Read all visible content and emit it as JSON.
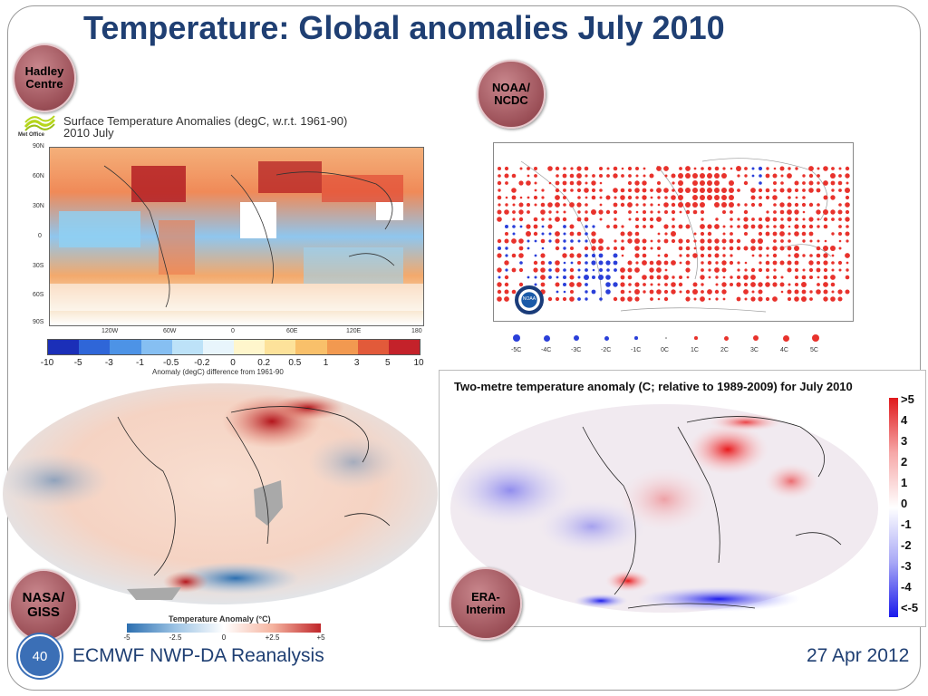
{
  "slide": {
    "title": "Temperature: Global anomalies July 2010",
    "footer_left": "ECMWF NWP-DA Reanalysis",
    "footer_right": "27 Apr 2012",
    "page_number": "40"
  },
  "badges": {
    "hadley": [
      "Hadley",
      "Centre"
    ],
    "noaa": [
      "NOAA/",
      "NCDC"
    ],
    "nasa": [
      "NASA/",
      "GISS"
    ],
    "era": [
      "ERA-",
      "Interim"
    ]
  },
  "hadley_map": {
    "logo_text": "Met Office",
    "title_line1": "Surface Temperature Anomalies (degC, w.r.t. 1961-90)",
    "title_line2": "2010 July",
    "lat_ticks": [
      "90N",
      "60N",
      "30N",
      "0",
      "30S",
      "60S",
      "90S"
    ],
    "lon_ticks": [
      "120W",
      "60W",
      "0",
      "60E",
      "120E",
      "180"
    ],
    "colorbar_ticks": [
      "-10",
      "-5",
      "-3",
      "-1",
      "-0.5",
      "-0.2",
      "0",
      "0.2",
      "0.5",
      "1",
      "3",
      "5",
      "10"
    ],
    "colorbar_colors": [
      "#1b2fb8",
      "#2f66d8",
      "#4d93e6",
      "#86bff2",
      "#bde2f8",
      "#e8f5fc",
      "#fff6cc",
      "#fde29a",
      "#f9c06a",
      "#f29950",
      "#e25a3a",
      "#c4222a"
    ],
    "colorbar_label": "Anomaly (degC) difference from 1961-90"
  },
  "noaa_map": {
    "legend_labels": [
      "-5C",
      "-4C",
      "-3C",
      "-2C",
      "-1C",
      "0C",
      "1C",
      "2C",
      "3C",
      "4C",
      "5C"
    ],
    "logo_text": "NOAA"
  },
  "nasa_map": {
    "colorbar_label": "Temperature Anomaly (°C)",
    "colorbar_ticks": [
      "-5",
      "-2.5",
      "0",
      "+2.5",
      "+5"
    ],
    "colors": {
      "neg": "#2c6fb0",
      "pos": "#c0262a"
    }
  },
  "era_map": {
    "title": "Two-metre temperature anomaly (C; relative to 1989-2009) for July 2010",
    "colorbar_ticks": [
      ">5",
      "4",
      "3",
      "2",
      "1",
      "0",
      "-1",
      "-2",
      "-3",
      "-4",
      "<-5"
    ]
  }
}
